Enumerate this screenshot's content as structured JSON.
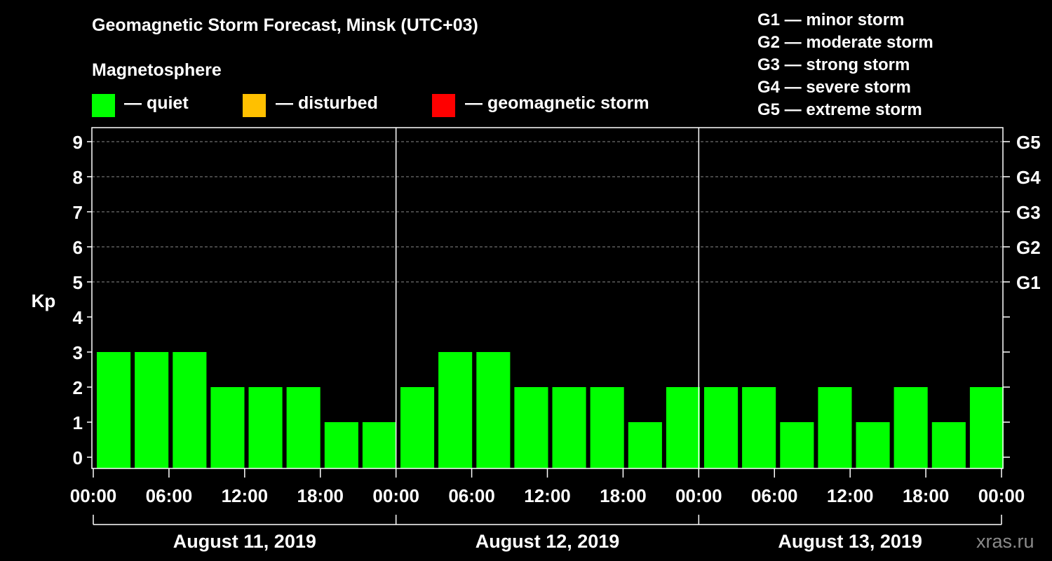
{
  "title": "Geomagnetic Storm Forecast, Minsk (UTC+03)",
  "legend": {
    "heading": "Magnetosphere",
    "items": [
      {
        "label": "— quiet",
        "color": "#00ff00"
      },
      {
        "label": "— disturbed",
        "color": "#ffc000"
      },
      {
        "label": "— geomagnetic storm",
        "color": "#ff0000"
      }
    ]
  },
  "storm_levels": [
    {
      "label": "G1 — minor storm"
    },
    {
      "label": "G2 — moderate storm"
    },
    {
      "label": "G3 — strong storm"
    },
    {
      "label": "G4 — severe storm"
    },
    {
      "label": "G5 — extreme storm"
    }
  ],
  "watermark": "xras.ru",
  "chart_data": {
    "type": "bar",
    "title": "Geomagnetic Storm Forecast, Minsk (UTC+03)",
    "ylabel": "Kp",
    "ylim": [
      0,
      9
    ],
    "yticks": [
      "0",
      "1",
      "2",
      "3",
      "4",
      "5",
      "6",
      "7",
      "8",
      "9"
    ],
    "right_axis": [
      {
        "kp": 5,
        "label": "G1"
      },
      {
        "kp": 6,
        "label": "G2"
      },
      {
        "kp": 7,
        "label": "G3"
      },
      {
        "kp": 8,
        "label": "G4"
      },
      {
        "kp": 9,
        "label": "G5"
      }
    ],
    "xtick_labels": [
      "00:00",
      "06:00",
      "12:00",
      "18:00",
      "00:00",
      "06:00",
      "12:00",
      "18:00",
      "00:00",
      "06:00",
      "12:00",
      "18:00",
      "00:00"
    ],
    "days": [
      "August 11, 2019",
      "August 12, 2019",
      "August 13, 2019"
    ],
    "interval_hours": 3,
    "values": [
      3,
      3,
      3,
      2,
      2,
      2,
      1,
      1,
      2,
      3,
      3,
      2,
      2,
      2,
      1,
      2,
      2,
      2,
      1,
      2,
      1,
      2,
      1,
      2
    ],
    "bar_color": "#00ff00",
    "grid": "dashed at Kp 5-9",
    "legend_placement": "top"
  }
}
